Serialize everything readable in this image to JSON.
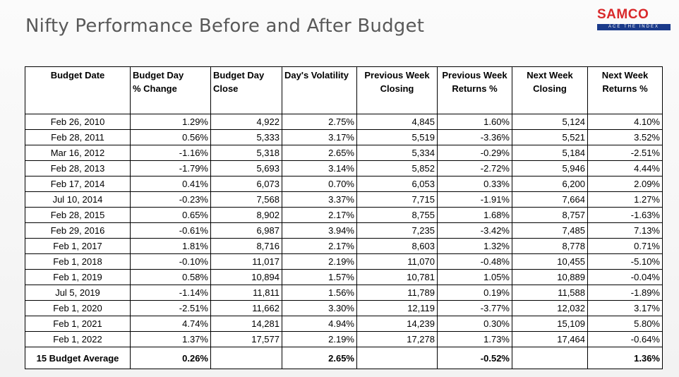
{
  "title": "Nifty Performance Before and After Budget",
  "logo": {
    "mark": "SAMCO",
    "tagline": "ACE THE INDEX",
    "brand_color": "#d9292b",
    "band_color": "#1a3a8a"
  },
  "columns": [
    "Budget Date",
    "Budget Day % Change",
    "Budget Day Close",
    "Day's Volatility",
    "Previous Week Closing",
    "Previous Week Returns %",
    "Next Week Closing",
    "Next Week Returns %"
  ],
  "header_lines": [
    [
      "Budget Date",
      ""
    ],
    [
      "Budget Day",
      "% Change"
    ],
    [
      "Budget Day",
      "Close"
    ],
    [
      "Day's Volatility",
      ""
    ],
    [
      "Previous Week",
      "Closing"
    ],
    [
      "Previous Week",
      "Returns %"
    ],
    [
      "Next Week",
      "Closing"
    ],
    [
      "Next Week",
      "Returns %"
    ]
  ],
  "rows": [
    [
      "Feb 26, 2010",
      "1.29%",
      "4,922",
      "2.75%",
      "4,845",
      "1.60%",
      "5,124",
      "4.10%"
    ],
    [
      "Feb 28, 2011",
      "0.56%",
      "5,333",
      "3.17%",
      "5,519",
      "-3.36%",
      "5,521",
      "3.52%"
    ],
    [
      "Mar 16, 2012",
      "-1.16%",
      "5,318",
      "2.65%",
      "5,334",
      "-0.29%",
      "5,184",
      "-2.51%"
    ],
    [
      "Feb 28, 2013",
      "-1.79%",
      "5,693",
      "3.14%",
      "5,852",
      "-2.72%",
      "5,946",
      "4.44%"
    ],
    [
      "Feb 17, 2014",
      "0.41%",
      "6,073",
      "0.70%",
      "6,053",
      "0.33%",
      "6,200",
      "2.09%"
    ],
    [
      "Jul 10, 2014",
      "-0.23%",
      "7,568",
      "3.37%",
      "7,715",
      "-1.91%",
      "7,664",
      "1.27%"
    ],
    [
      "Feb 28, 2015",
      "0.65%",
      "8,902",
      "2.17%",
      "8,755",
      "1.68%",
      "8,757",
      "-1.63%"
    ],
    [
      "Feb 29, 2016",
      "-0.61%",
      "6,987",
      "3.94%",
      "7,235",
      "-3.42%",
      "7,485",
      "7.13%"
    ],
    [
      "Feb 1, 2017",
      "1.81%",
      "8,716",
      "2.17%",
      "8,603",
      "1.32%",
      "8,778",
      "0.71%"
    ],
    [
      "Feb 1, 2018",
      "-0.10%",
      "11,017",
      "2.19%",
      "11,070",
      "-0.48%",
      "10,455",
      "-5.10%"
    ],
    [
      "Feb 1, 2019",
      "0.58%",
      "10,894",
      "1.57%",
      "10,781",
      "1.05%",
      "10,889",
      "-0.04%"
    ],
    [
      "Jul 5, 2019",
      "-1.14%",
      "11,811",
      "1.56%",
      "11,789",
      "0.19%",
      "11,588",
      "-1.89%"
    ],
    [
      "Feb 1, 2020",
      "-2.51%",
      "11,662",
      "3.30%",
      "12,119",
      "-3.77%",
      "12,032",
      "3.17%"
    ],
    [
      "Feb 1, 2021",
      "4.74%",
      "14,281",
      "4.94%",
      "14,239",
      "0.30%",
      "15,109",
      "5.80%"
    ],
    [
      "Feb 1, 2022",
      "1.37%",
      "17,577",
      "2.19%",
      "17,278",
      "1.73%",
      "17,464",
      "-0.64%"
    ]
  ],
  "average_row": [
    "15 Budget Average",
    "0.26%",
    "",
    "2.65%",
    "",
    "-0.52%",
    "",
    "1.36%"
  ]
}
